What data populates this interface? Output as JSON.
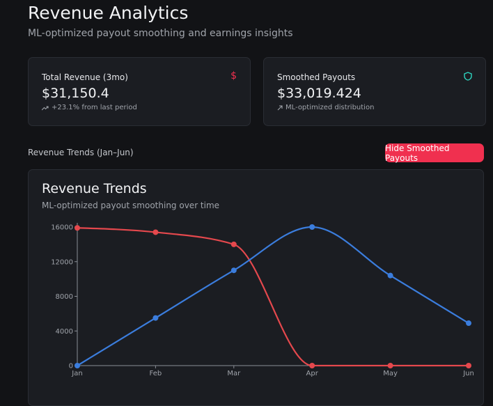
{
  "header": {
    "title": "Revenue Analytics",
    "subtitle": "ML-optimized payout smoothing and earnings insights"
  },
  "cards": [
    {
      "label": "Total Revenue (3mo)",
      "icon": "$",
      "value": "$31,150.4",
      "note": "+23.1% from last period"
    },
    {
      "label": "Smoothed Payouts",
      "value": "$33,019.424",
      "note": "ML-optimized distribution"
    }
  ],
  "section_label": "Revenue Trends (Jan–Jun)",
  "button": "Hide Smoothed Payouts",
  "chart_data": {
    "type": "line",
    "title": "Revenue Trends",
    "subtitle": "ML-optimized payout smoothing over time",
    "categories": [
      "Jan",
      "Feb",
      "Mar",
      "Apr",
      "May",
      "Jun"
    ],
    "series": [
      {
        "color": "#e5484d",
        "values": [
          15900,
          15400,
          14000,
          0,
          0,
          0
        ]
      },
      {
        "color": "#3b7ddd",
        "values": [
          0,
          5500,
          11000,
          16000,
          10400,
          4900
        ]
      }
    ],
    "ylim": [
      0,
      16000
    ],
    "yticks": [
      0,
      4000,
      8000,
      12000,
      16000
    ],
    "grid": false,
    "curve": "monotone"
  }
}
